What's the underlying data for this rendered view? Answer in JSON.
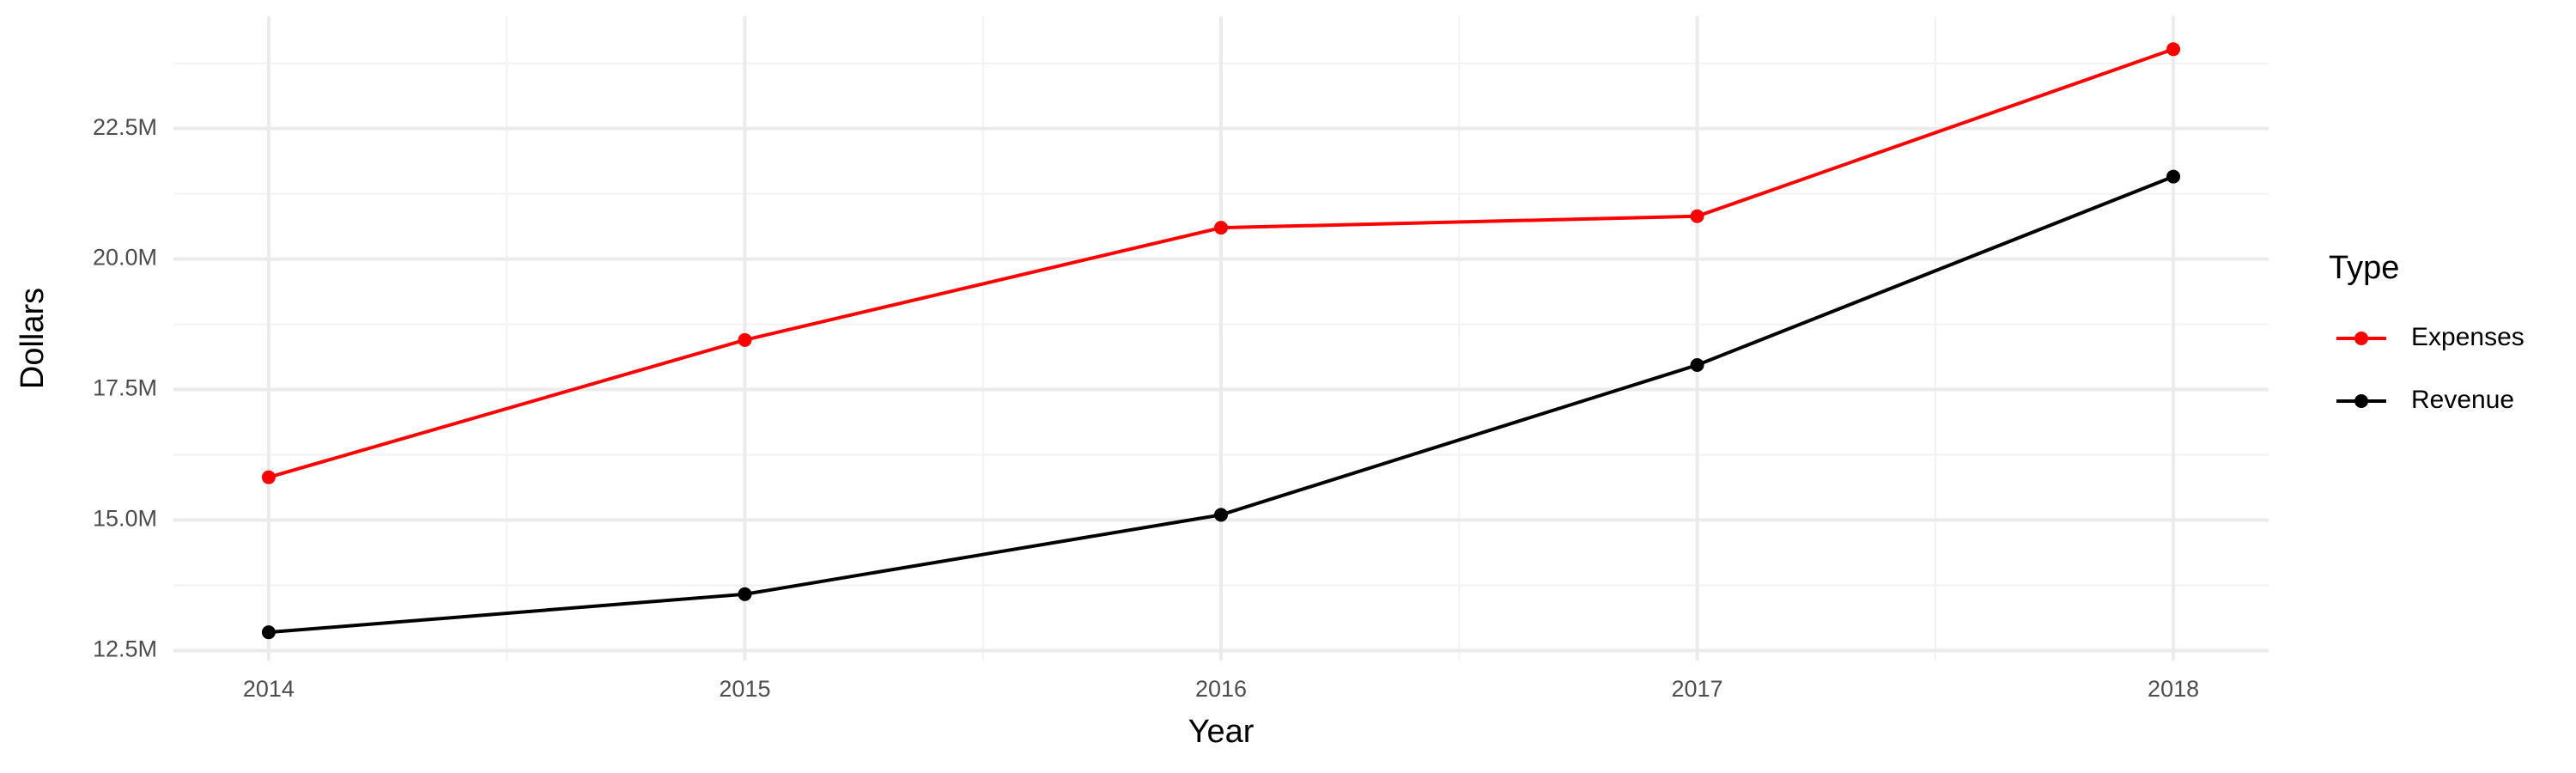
{
  "chart_data": {
    "type": "line",
    "x_label": "Year",
    "y_label": "Dollars",
    "legend_title": "Type",
    "legend_position": "right",
    "grid": true,
    "x": [
      2014,
      2015,
      2016,
      2017,
      2018
    ],
    "series": [
      {
        "name": "Expenses",
        "color": "#ff0000",
        "values": [
          15820000,
          18450000,
          20600000,
          20820000,
          24020000
        ]
      },
      {
        "name": "Revenue",
        "color": "#000000",
        "values": [
          12850000,
          13580000,
          15100000,
          17970000,
          21580000
        ]
      }
    ],
    "xlim": [
      2013.8,
      2018.2
    ],
    "xticks": [
      2014,
      2015,
      2016,
      2017,
      2018
    ],
    "ylim": [
      12310000,
      24650000
    ],
    "yticks": [
      {
        "value": 12500000,
        "label": "12.5M"
      },
      {
        "value": 15000000,
        "label": "15.0M"
      },
      {
        "value": 17500000,
        "label": "17.5M"
      },
      {
        "value": 20000000,
        "label": "20.0M"
      },
      {
        "value": 22500000,
        "label": "22.5M"
      }
    ]
  }
}
